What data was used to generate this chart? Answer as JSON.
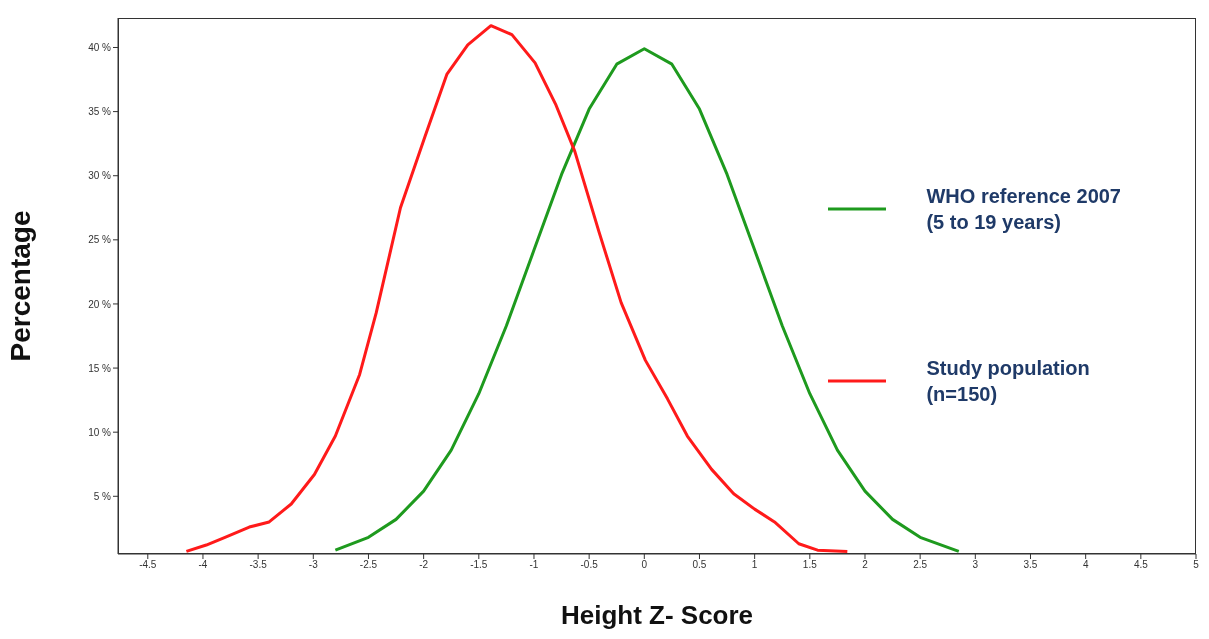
{
  "chart_data": {
    "type": "line",
    "xlabel": "Height Z- Score",
    "ylabel": "Percentage",
    "xlim": [
      -4.77,
      5
    ],
    "xticks": [
      -4.5,
      -4,
      -3.5,
      -3,
      -2.5,
      -2,
      -1.5,
      -1,
      -0.5,
      0,
      0.5,
      1,
      1.5,
      2,
      2.5,
      3,
      3.5,
      4,
      4.5,
      5
    ],
    "ylim": [
      0.5,
      42.3
    ],
    "yticks": [
      {
        "value": 5,
        "label": "5 %"
      },
      {
        "value": 10,
        "label": "10 %"
      },
      {
        "value": 15,
        "label": "15 %"
      },
      {
        "value": 20,
        "label": "20 %"
      },
      {
        "value": 25,
        "label": "25 %"
      },
      {
        "value": 30,
        "label": "30 %"
      },
      {
        "value": 35,
        "label": "35 %"
      },
      {
        "value": 40,
        "label": "40 %"
      }
    ],
    "grid": false,
    "legend": "right",
    "marker": "none",
    "line_style": "solid",
    "series": [
      {
        "name": "WHO reference 2007\n(5 to 19 years)",
        "color": "#1e9a1e",
        "x": [
          -2.8,
          -2.5,
          -2.25,
          -2,
          -1.75,
          -1.5,
          -1.25,
          -1,
          -0.75,
          -0.5,
          -0.25,
          0,
          0.25,
          0.5,
          0.75,
          1,
          1.25,
          1.5,
          1.75,
          2,
          2.25,
          2.5,
          2.85
        ],
        "values": [
          0.8,
          1.8,
          3.2,
          5.4,
          8.6,
          13.0,
          18.3,
          24.2,
          30.1,
          35.2,
          38.7,
          39.9,
          38.7,
          35.2,
          30.1,
          24.2,
          18.3,
          13.0,
          8.6,
          5.4,
          3.2,
          1.8,
          0.7
        ]
      },
      {
        "name": "Study population\n(n=150)",
        "color": "#ff1a1a",
        "x": [
          -4.15,
          -3.97,
          -3.8,
          -3.58,
          -3.4,
          -3.2,
          -2.99,
          -2.8,
          -2.58,
          -2.43,
          -2.21,
          -1.99,
          -1.79,
          -1.6,
          -1.39,
          -1.2,
          -0.99,
          -0.8,
          -0.63,
          -0.41,
          -0.21,
          0.01,
          0.21,
          0.39,
          0.61,
          0.81,
          1.0,
          1.18,
          1.4,
          1.57,
          1.84
        ],
        "values": [
          0.7,
          1.2,
          1.8,
          2.6,
          3.0,
          4.4,
          6.7,
          9.7,
          14.5,
          19.3,
          27.5,
          33.0,
          37.9,
          40.2,
          41.7,
          41.0,
          38.8,
          35.5,
          31.9,
          25.6,
          20.1,
          15.6,
          12.6,
          9.7,
          7.1,
          5.2,
          4.0,
          3.0,
          1.3,
          0.8,
          0.7
        ]
      }
    ]
  }
}
